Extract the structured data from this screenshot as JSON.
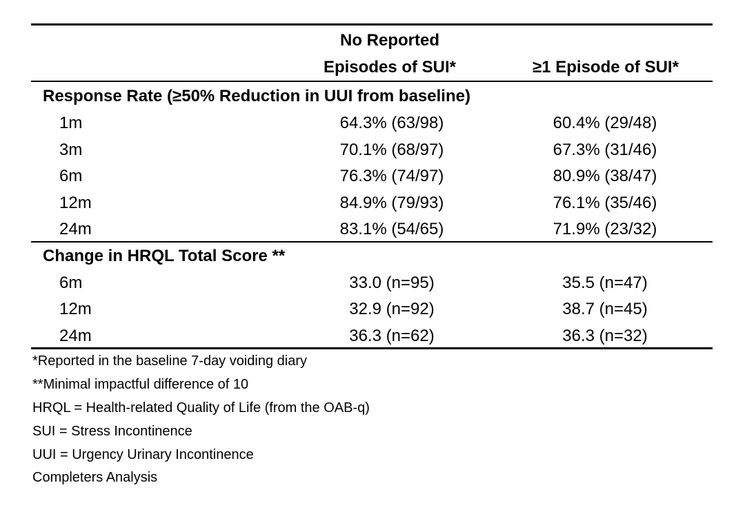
{
  "table": {
    "headers": {
      "col1_line1": "No Reported",
      "col1_line2": "Episodes of SUI*",
      "col2": "≥1 Episode of SUI*"
    },
    "response_section": {
      "title": "Response Rate (≥50% Reduction in UUI from baseline)",
      "rows": [
        {
          "label": "1m",
          "col1": "64.3% (63/98)",
          "col2": "60.4% (29/48)"
        },
        {
          "label": "3m",
          "col1": "70.1% (68/97)",
          "col2": "67.3% (31/46)"
        },
        {
          "label": "6m",
          "col1": "76.3% (74/97)",
          "col2": "80.9% (38/47)"
        },
        {
          "label": "12m",
          "col1": "84.9% (79/93)",
          "col2": "76.1% (35/46)"
        },
        {
          "label": "24m",
          "col1": "83.1% (54/65)",
          "col2": "71.9% (23/32)"
        }
      ]
    },
    "hrql_section": {
      "title": "Change in HRQL Total Score **",
      "rows": [
        {
          "label": "6m",
          "col1": "33.0 (n=95)",
          "col2": "35.5 (n=47)"
        },
        {
          "label": "12m",
          "col1": "32.9 (n=92)",
          "col2": "38.7 (n=45)"
        },
        {
          "label": "24m",
          "col1": "36.3 (n=62)",
          "col2": "36.3 (n=32)"
        }
      ]
    }
  },
  "footnotes": [
    "*Reported in the baseline 7-day voiding diary",
    "**Minimal impactful difference of 10",
    "HRQL = Health-related Quality of Life (from the OAB-q)",
    "SUI = Stress Incontinence",
    "UUI = Urgency Urinary Incontinence",
    "Completers Analysis"
  ]
}
